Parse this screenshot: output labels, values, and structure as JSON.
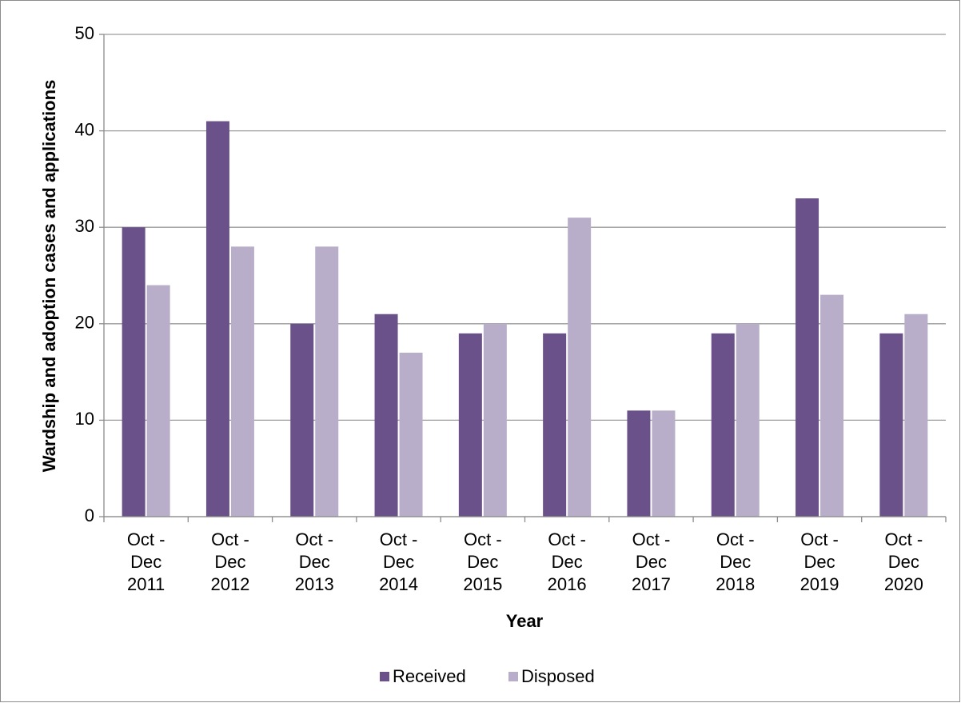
{
  "chart_data": {
    "type": "bar",
    "categories": [
      "Oct - Dec 2011",
      "Oct - Dec 2012",
      "Oct - Dec 2013",
      "Oct - Dec 2014",
      "Oct - Dec 2015",
      "Oct - Dec 2016",
      "Oct - Dec 2017",
      "Oct - Dec 2018",
      "Oct - Dec 2019",
      "Oct - Dec 2020"
    ],
    "series": [
      {
        "name": "Received",
        "color": "#6a5189",
        "values": [
          30,
          41,
          20,
          21,
          19,
          19,
          11,
          19,
          33,
          19
        ]
      },
      {
        "name": "Disposed",
        "color": "#b9aec9",
        "values": [
          24,
          28,
          28,
          17,
          20,
          31,
          11,
          20,
          23,
          21
        ]
      }
    ],
    "xlabel": "Year",
    "ylabel": "Wardship and adoption cases and applications",
    "ylim": [
      0,
      50
    ],
    "yticks": [
      0,
      10,
      20,
      30,
      40,
      50
    ],
    "grid": true,
    "legend": "bottom"
  }
}
